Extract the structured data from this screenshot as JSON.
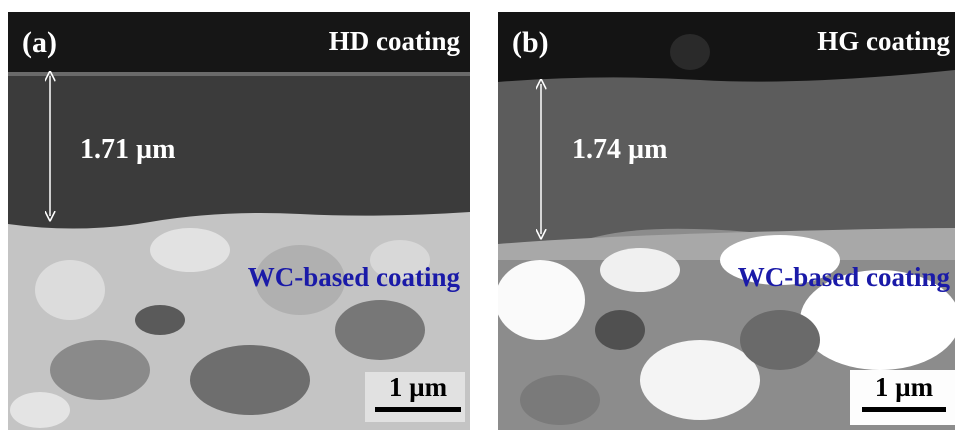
{
  "panels": [
    {
      "label": "(a)",
      "coating": "HD coating",
      "thickness": "1.71 µm",
      "substrate": "WC-based coating",
      "scale_bar": "1 µm"
    },
    {
      "label": "(b)",
      "coating": "HG coating",
      "thickness": "1.74 µm",
      "substrate": "WC-based coating",
      "scale_bar": "1 µm"
    }
  ]
}
